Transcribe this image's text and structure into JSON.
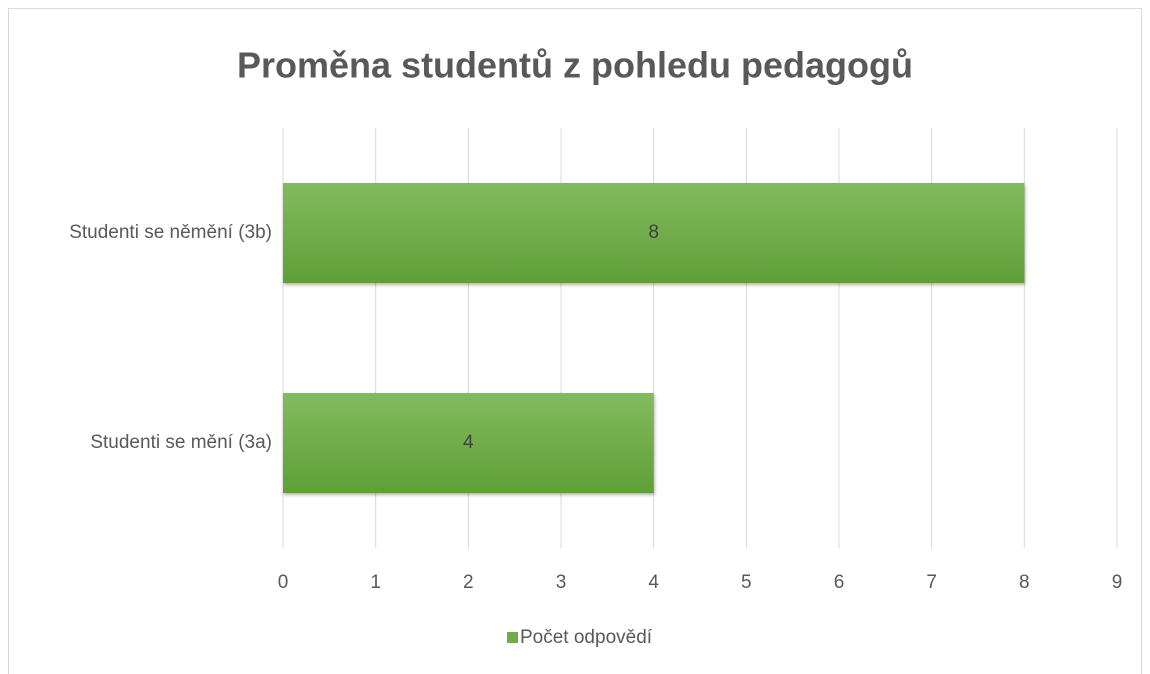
{
  "chart_data": {
    "type": "barh",
    "title": "Proměna studentů z pohledu pedagogů",
    "categories": [
      "Studenti se němění (3b)",
      "Studenti se mění (3a)"
    ],
    "series": [
      {
        "name": "Počet odpovědí",
        "color": "#70ad47",
        "values": [
          8,
          4
        ]
      }
    ],
    "xlim": [
      0,
      9
    ],
    "xticks": [
      0,
      1,
      2,
      3,
      4,
      5,
      6,
      7,
      8,
      9
    ],
    "grid": true,
    "legend": "bottom"
  }
}
